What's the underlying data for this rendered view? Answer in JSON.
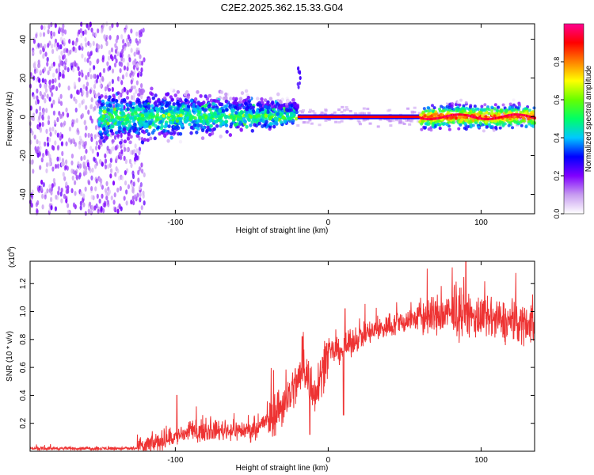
{
  "title": "C2E2.2025.362.15.33.G04",
  "chart_data": [
    {
      "type": "heatmap",
      "name": "spectrogram",
      "xlabel": "Height of straight line (km)",
      "ylabel": "Frequency (Hz)",
      "xlim": [
        -195,
        135
      ],
      "ylim": [
        -50,
        48
      ],
      "xticks": [
        -100,
        0,
        100
      ],
      "xtick_labels": [
        "-100",
        "0",
        "100"
      ],
      "yticks": [
        -40,
        -20,
        0,
        20,
        40
      ],
      "ytick_labels": [
        "-40",
        "-20",
        "0",
        "20",
        "40"
      ],
      "colorbar": {
        "label": "Normalized spectral amplitude",
        "range": [
          0,
          1
        ],
        "ticks": [
          0.0,
          0.2,
          0.4,
          0.6,
          0.8
        ],
        "tick_labels": [
          "0.0",
          "0.2",
          "0.4",
          "0.6",
          "0.8"
        ],
        "colors": [
          "#ffffff",
          "#c79cf0",
          "#8000ff",
          "#0000ff",
          "#00c8ff",
          "#00ff66",
          "#66ff00",
          "#ffff00",
          "#ff8000",
          "#ff0000",
          "#ff0090"
        ]
      },
      "regions": [
        {
          "x_range": [
            -195,
            -120
          ],
          "freq_range": [
            -50,
            48
          ],
          "amplitude": 0.15,
          "description": "broadband purple noise"
        },
        {
          "x_range": [
            -150,
            -20
          ],
          "freq_center": 0,
          "freq_halfwidth": [
            6,
            12
          ],
          "amplitude": 0.3
        },
        {
          "x_range": [
            -20,
            60
          ],
          "freq_center": 0,
          "freq_halfwidth": 1,
          "amplitude": 0.9
        },
        {
          "x_range": [
            60,
            135
          ],
          "freq_center": 0,
          "freq_halfwidth": 3,
          "amplitude": 0.7
        }
      ]
    },
    {
      "type": "line",
      "name": "snr",
      "xlabel": "Height of straight line (km)",
      "ylabel": "SNR (10 * v/v)",
      "yscale_label": "(x10",
      "yscale_exp": "4",
      "yscale_close": ")",
      "xlim": [
        -195,
        135
      ],
      "ylim": [
        0,
        13600
      ],
      "xticks": [
        -100,
        0,
        100
      ],
      "xtick_labels": [
        "-100",
        "0",
        "100"
      ],
      "yticks": [
        2000,
        4000,
        6000,
        8000,
        10000,
        12000
      ],
      "ytick_labels": [
        "0.2",
        "0.4",
        "0.6",
        "0.8",
        "1.0",
        "1.2"
      ],
      "color": "#ee3333",
      "trend": [
        {
          "x": -195,
          "y": 200
        },
        {
          "x": -125,
          "y": 200
        },
        {
          "x": -110,
          "y": 700
        },
        {
          "x": -90,
          "y": 1400
        },
        {
          "x": -70,
          "y": 1500
        },
        {
          "x": -50,
          "y": 1500
        },
        {
          "x": -40,
          "y": 2200
        },
        {
          "x": -30,
          "y": 3300
        },
        {
          "x": -20,
          "y": 5000
        },
        {
          "x": -15,
          "y": 6000
        },
        {
          "x": -10,
          "y": 4000
        },
        {
          "x": -5,
          "y": 5500
        },
        {
          "x": 0,
          "y": 7000
        },
        {
          "x": 10,
          "y": 7300
        },
        {
          "x": 20,
          "y": 8200
        },
        {
          "x": 40,
          "y": 9000
        },
        {
          "x": 60,
          "y": 9600
        },
        {
          "x": 80,
          "y": 9800
        },
        {
          "x": 100,
          "y": 9500
        },
        {
          "x": 120,
          "y": 9200
        },
        {
          "x": 135,
          "y": 9200
        }
      ],
      "features": [
        {
          "x": -99,
          "y": 4000,
          "note": "spike"
        },
        {
          "x": -17,
          "y": 8200,
          "note": "spike"
        },
        {
          "x": -12,
          "y": 1200,
          "note": "dip"
        },
        {
          "x": 10,
          "y": 2600,
          "note": "dip"
        },
        {
          "x": 11,
          "y": 10200,
          "note": "spike"
        },
        {
          "x": 90,
          "y": 13600,
          "note": "peak"
        }
      ]
    }
  ]
}
